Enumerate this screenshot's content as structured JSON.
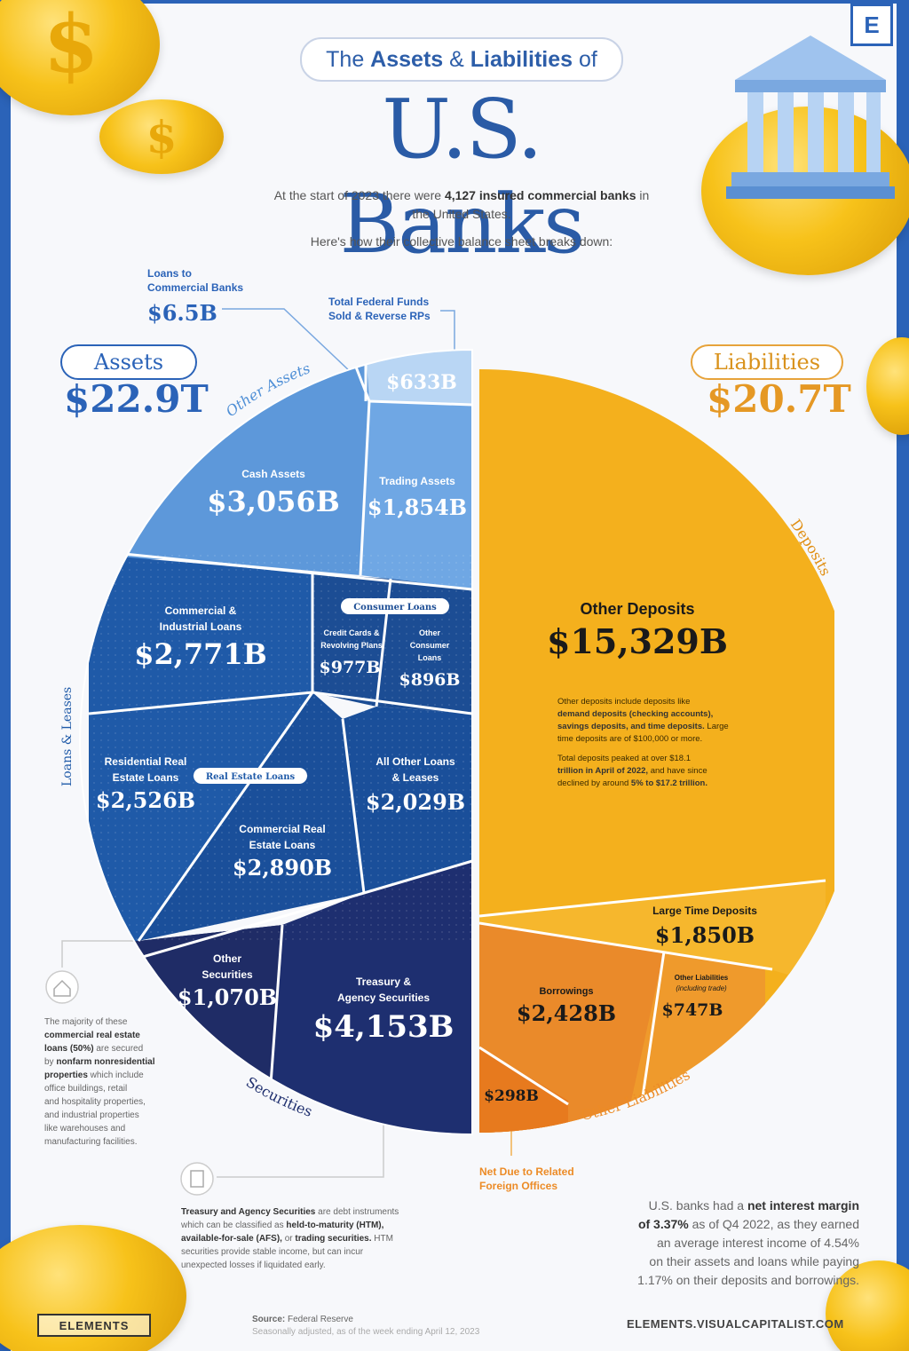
{
  "header": {
    "logo_letter": "E",
    "title_prefix": "The ",
    "title_bold1": "Assets",
    "title_mid": " & ",
    "title_bold2": "Liabilities",
    "title_suffix": " of",
    "big_title": "U.S. Banks",
    "intro_a": "At the start of 2023 there were ",
    "intro_b": "4,127 insured commercial banks",
    "intro_c": " in the United States.",
    "intro_2": "Here's how their collective balance sheet breaks down:"
  },
  "totals": {
    "assets_label": "Assets",
    "assets_value": "$22.9T",
    "liabilities_label": "Liabilities",
    "liabilities_value": "$20.7T"
  },
  "callouts": {
    "loans_to_banks_label_1": "Loans to",
    "loans_to_banks_label_2": "Commercial Banks",
    "loans_to_banks_value": "$6.5B",
    "fed_funds_label_1": "Total Federal Funds",
    "fed_funds_label_2": "Sold & Reverse RPs",
    "net_due_1": "Net Due to Related",
    "net_due_2": "Foreign Offices"
  },
  "chart_data": {
    "type": "pie",
    "title": "The Assets & Liabilities of U.S. Banks",
    "units": "$B",
    "assets": {
      "total": "$22.9T",
      "groups": [
        {
          "name": "Other Assets",
          "items": [
            {
              "label": "Loans to Commercial Banks",
              "value": 6.5,
              "display": "$6.5B"
            },
            {
              "label": "Total Federal Funds Sold & Reverse RPs",
              "value": 633,
              "display": "$633B"
            },
            {
              "label": "Cash Assets",
              "value": 3056,
              "display": "$3,056B"
            },
            {
              "label": "Trading Assets",
              "value": 1854,
              "display": "$1,854B"
            }
          ]
        },
        {
          "name": "Loans & Leases",
          "items": [
            {
              "label": "Commercial & Industrial Loans",
              "value": 2771,
              "display": "$2,771B"
            },
            {
              "label": "Credit Cards & Revolving Plans",
              "value": 977,
              "display": "$977B",
              "subgroup": "Consumer Loans"
            },
            {
              "label": "Other Consumer Loans",
              "value": 896,
              "display": "$896B",
              "subgroup": "Consumer Loans"
            },
            {
              "label": "Residential Real Estate Loans",
              "value": 2526,
              "display": "$2,526B",
              "subgroup": "Real Estate Loans"
            },
            {
              "label": "Commercial Real Estate Loans",
              "value": 2890,
              "display": "$2,890B",
              "subgroup": "Real Estate Loans"
            },
            {
              "label": "All Other Loans & Leases",
              "value": 2029,
              "display": "$2,029B"
            }
          ]
        },
        {
          "name": "Securities",
          "items": [
            {
              "label": "Other Securities",
              "value": 1070,
              "display": "$1,070B"
            },
            {
              "label": "Treasury & Agency Securities",
              "value": 4153,
              "display": "$4,153B"
            }
          ]
        }
      ]
    },
    "liabilities": {
      "total": "$20.7T",
      "groups": [
        {
          "name": "Deposits",
          "items": [
            {
              "label": "Other Deposits",
              "value": 15329,
              "display": "$15,329B"
            },
            {
              "label": "Large Time Deposits",
              "value": 1850,
              "display": "$1,850B"
            }
          ]
        },
        {
          "name": "Other Liabilities",
          "items": [
            {
              "label": "Borrowings",
              "value": 2428,
              "display": "$2,428B"
            },
            {
              "label": "Other Liabilities (including trade)",
              "value": 747,
              "display": "$747B"
            },
            {
              "label": "Net Due to Related Foreign Offices",
              "value": 298,
              "display": "$298B"
            }
          ]
        }
      ]
    },
    "group_labels": {
      "other_assets": "Other Assets",
      "loans_leases": "Loans & Leases",
      "securities": "Securities",
      "deposits": "Deposits",
      "other_liabilities": "Other Liabilities",
      "consumer_loans": "Consumer Loans",
      "real_estate_loans": "Real Estate Loans"
    },
    "slice_labels": {
      "fed_funds": {
        "value": "$633B"
      },
      "cash": {
        "label": "Cash Assets",
        "value": "$3,056B"
      },
      "trading": {
        "label": "Trading Assets",
        "value": "$1,854B"
      },
      "ci_loans": {
        "label_1": "Commercial &",
        "label_2": "Industrial Loans",
        "value": "$2,771B"
      },
      "credit_cards": {
        "label_1": "Credit Cards &",
        "label_2": "Revolving Plans",
        "value": "$977B"
      },
      "other_consumer": {
        "label_1": "Other",
        "label_2": "Consumer",
        "label_3": "Loans",
        "value": "$896B"
      },
      "residential": {
        "label_1": "Residential Real",
        "label_2": "Estate Loans",
        "value": "$2,526B"
      },
      "commercial_re": {
        "label_1": "Commercial Real",
        "label_2": "Estate Loans",
        "value": "$2,890B"
      },
      "all_other_loans": {
        "label_1": "All Other Loans",
        "label_2": "& Leases",
        "value": "$2,029B"
      },
      "other_securities": {
        "label_1": "Other",
        "label_2": "Securities",
        "value": "$1,070B"
      },
      "treasury": {
        "label_1": "Treasury &",
        "label_2": "Agency Securities",
        "value": "$4,153B"
      },
      "other_deposits": {
        "label": "Other Deposits",
        "value": "$15,329B"
      },
      "large_time": {
        "label": "Large Time Deposits",
        "value": "$1,850B"
      },
      "borrowings": {
        "label": "Borrowings",
        "value": "$2,428B"
      },
      "other_liab": {
        "label_1": "Other Liabilities",
        "label_2": "(including trade)",
        "value": "$747B"
      },
      "net_due": {
        "value": "$298B"
      }
    },
    "deposits_note": {
      "p1a": "Other deposits include deposits like",
      "p1b": "demand deposits (checking accounts),",
      "p1c": "savings deposits, and time deposits.",
      "p1d": " Large",
      "p1e": "time deposits are of $100,000 or more.",
      "p2a": "Total deposits peaked at over $18.1",
      "p2b": "trillion in April of 2022,",
      "p2c": " and have since",
      "p2d": "declined by around ",
      "p2e": "5% to $17.2 trillion."
    },
    "colors": {
      "assets_light": "#7fb2e8",
      "assets_mid": "#4f8fd6",
      "loans_dark": "#1d4f9c",
      "securities_navy": "#1f2f6e",
      "deposits_gold": "#f4b01d",
      "other_liab_orange": "#ec8b26"
    }
  },
  "notes": {
    "cre_note": [
      {
        "t": "The majority of these",
        "b": false
      },
      {
        "t": "commercial real estate",
        "b": true
      },
      {
        "t": "loans (50%)",
        "b": true,
        "after": " are secured"
      },
      {
        "t": "by ",
        "b": false,
        "bold_tail": "nonfarm nonresidential"
      },
      {
        "t": "properties",
        "b": true,
        "after": " which include"
      },
      {
        "t": "office buildings, retail",
        "b": false
      },
      {
        "t": "and hospitality properties,",
        "b": false
      },
      {
        "t": "and industrial properties",
        "b": false
      },
      {
        "t": "like warehouses and",
        "b": false
      },
      {
        "t": "manufacturing facilities.",
        "b": false
      }
    ],
    "treasury_note": {
      "l1a": "Treasury and Agency Securities",
      "l1b": " are debt instruments",
      "l2a": "which can be classified as ",
      "l2b": "held-to-maturity (HTM),",
      "l3a": "available-for-sale (AFS),",
      "l3b": " or ",
      "l3c": "trading securities.",
      "l3d": " HTM",
      "l4": "securities provide stable income, but can incur",
      "l5": "unexpected losses if liquidated early."
    },
    "nim": {
      "a": "U.S. banks had a ",
      "b": "net interest margin",
      "c": "of 3.37%",
      "d": " as of Q4 2022, as they earned",
      "e": "an average interest income of 4.54%",
      "f": "on their assets and loans while paying",
      "g": "1.17% on their deposits and borrowings."
    }
  },
  "footer": {
    "logo": "ELEMENTS",
    "source_label": "Source:",
    "source": " Federal Reserve",
    "source_sub": "Seasonally adjusted, as of the week ending April 12, 2023",
    "site": "ELEMENTS.VISUALCAPITALIST.COM"
  }
}
